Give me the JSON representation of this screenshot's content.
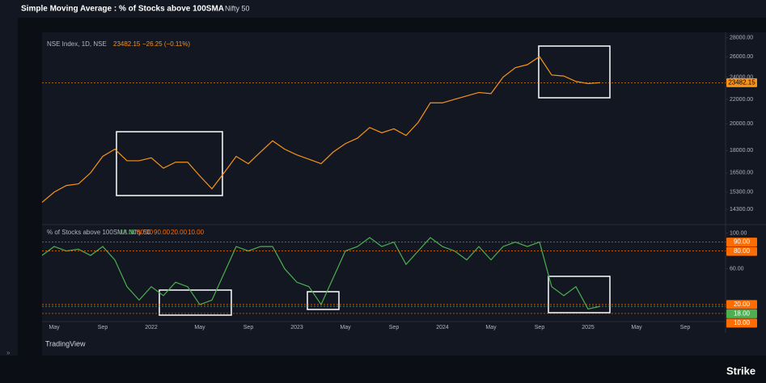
{
  "header": {
    "title": "Simple Moving Average : % of Stocks above 100SMA",
    "symbol": "Nifty 50"
  },
  "chart_data": [
    {
      "type": "line",
      "legend": "NSE Index, 1D, NSE",
      "last_value": 23482.15,
      "change": "−26.25 (−0.11%)",
      "log_scale": true,
      "ylim": [
        13600,
        28600
      ],
      "yticks": [
        {
          "value": 14300,
          "label": "14300.00"
        },
        {
          "value": 15300,
          "label": "15300.00"
        },
        {
          "value": 16500,
          "label": "16500.00"
        },
        {
          "value": 18000,
          "label": "18000.00"
        },
        {
          "value": 20000,
          "label": "20000.00"
        },
        {
          "value": 22000,
          "label": "22000.00"
        },
        {
          "value": 24000,
          "label": "24000.00"
        },
        {
          "value": 26000,
          "label": "26000.00"
        },
        {
          "value": 28000,
          "label": "28000.00"
        }
      ],
      "series": [
        {
          "name": "NSE Index",
          "color": "#f7931a",
          "values": [
            14700,
            15300,
            15700,
            15800,
            16500,
            17600,
            18100,
            17300,
            17300,
            17500,
            16800,
            17200,
            17200,
            16300,
            15500,
            16500,
            17600,
            17100,
            17900,
            18700,
            18100,
            17700,
            17400,
            17100,
            17900,
            18500,
            18900,
            19700,
            19300,
            19600,
            19100,
            20100,
            21700,
            21700,
            22000,
            22300,
            22600,
            22500,
            24000,
            24900,
            25200,
            26000,
            24200,
            24100,
            23600,
            23400,
            23482.15
          ]
        }
      ]
    },
    {
      "type": "line",
      "legend": "% of Stocks above 100SMA Nifty 50",
      "ylim": [
        0,
        105
      ],
      "yticks": [
        {
          "value": 100,
          "label": "100.00"
        },
        {
          "value": 60,
          "label": "60.00"
        }
      ],
      "levels": [
        {
          "value": 18,
          "label": "18.00",
          "color": "#4caf50"
        },
        {
          "value": 80,
          "label": "80.00",
          "color": "#ff6d00"
        },
        {
          "value": 90,
          "label": "90.00",
          "color": "#ff6d00"
        },
        {
          "value": 20,
          "label": "20.00",
          "color": "#ff6d00"
        },
        {
          "value": 10,
          "label": "10.00",
          "color": "#ff6d00"
        }
      ],
      "xtick_labels": [
        "May",
        "Sep",
        "2022",
        "May",
        "Sep",
        "2023",
        "May",
        "Sep",
        "2024",
        "May",
        "Sep",
        "2025",
        "May",
        "Sep"
      ],
      "series": [
        {
          "name": "% of Stocks above 100SMA",
          "color": "#4caf50",
          "values": [
            75,
            85,
            80,
            82,
            75,
            85,
            70,
            40,
            25,
            40,
            30,
            45,
            40,
            20,
            25,
            55,
            85,
            80,
            85,
            85,
            60,
            45,
            40,
            20,
            50,
            80,
            85,
            95,
            85,
            90,
            65,
            80,
            95,
            85,
            80,
            70,
            85,
            70,
            85,
            90,
            85,
            90,
            40,
            30,
            40,
            15,
            18
          ]
        }
      ]
    }
  ],
  "footer": {
    "brand": "TradingView",
    "logo": "Strike"
  }
}
